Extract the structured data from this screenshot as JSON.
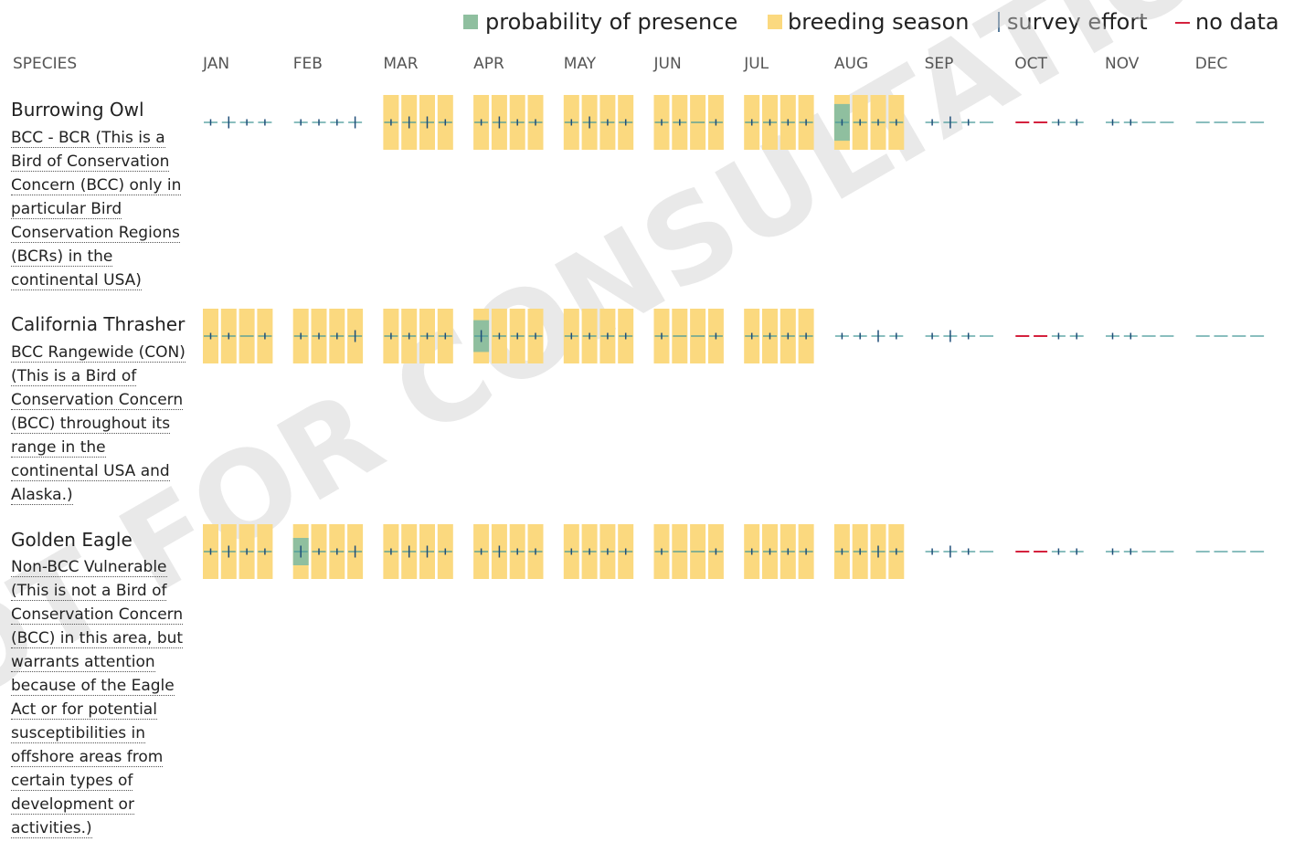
{
  "watermark": "NOT FOR CONSULTATION",
  "legend": {
    "presence": "probability of presence",
    "breeding": "breeding season",
    "effort": "survey effort",
    "no_data": "no data"
  },
  "header": {
    "species": "SPECIES",
    "months": [
      "JAN",
      "FEB",
      "MAR",
      "APR",
      "MAY",
      "JUN",
      "JUL",
      "AUG",
      "SEP",
      "OCT",
      "NOV",
      "DEC"
    ]
  },
  "species": [
    {
      "name": "Burrowing Owl",
      "description": "BCC - BCR (This is a Bird of Conservation Concern (BCC) only in particular Bird Conservation Regions (BCRs) in the continental USA)",
      "breeding": [
        false,
        false,
        false,
        false,
        false,
        false,
        false,
        false,
        true,
        true,
        true,
        true,
        true,
        true,
        true,
        true,
        true,
        true,
        true,
        true,
        true,
        true,
        true,
        true,
        true,
        true,
        true,
        true,
        true,
        true,
        true,
        true,
        false,
        false,
        false,
        false,
        false,
        false,
        false,
        false,
        false,
        false,
        false,
        false,
        false,
        false,
        false,
        false
      ],
      "presence": [
        0,
        0,
        0,
        0,
        0,
        0,
        0,
        0,
        0,
        0,
        0,
        0,
        0,
        0,
        0,
        0,
        0,
        0,
        0,
        0,
        0,
        0,
        0,
        0,
        0,
        0,
        0,
        0,
        0.67,
        0,
        0,
        0,
        0,
        0,
        0,
        0,
        0,
        0,
        0,
        0,
        0,
        0,
        0,
        0,
        0,
        0,
        0,
        0
      ],
      "effort": [
        1,
        2,
        1,
        1,
        1,
        1,
        1,
        2,
        1,
        2,
        2,
        1,
        1,
        2,
        1,
        1,
        1,
        2,
        1,
        1,
        1,
        1,
        0,
        1,
        1,
        1,
        1,
        1,
        1,
        1,
        1,
        1,
        1,
        2,
        1,
        0,
        null,
        null,
        1,
        1,
        1,
        1,
        0,
        0,
        0,
        0,
        0,
        0
      ]
    },
    {
      "name": "California Thrasher",
      "description": "BCC Rangewide (CON) (This is a Bird of Conservation Concern (BCC) throughout its range in the continental USA and Alaska.)",
      "breeding": [
        true,
        true,
        true,
        true,
        true,
        true,
        true,
        true,
        true,
        true,
        true,
        true,
        true,
        true,
        true,
        true,
        true,
        true,
        true,
        true,
        true,
        true,
        true,
        true,
        true,
        true,
        true,
        true,
        false,
        false,
        false,
        false,
        false,
        false,
        false,
        false,
        false,
        false,
        false,
        false,
        false,
        false,
        false,
        false,
        false,
        false,
        false,
        false
      ],
      "presence": [
        0,
        0,
        0,
        0,
        0,
        0,
        0,
        0,
        0,
        0,
        0,
        0,
        0.58,
        0,
        0,
        0,
        0,
        0,
        0,
        0,
        0,
        0,
        0,
        0,
        0,
        0,
        0,
        0,
        0,
        0,
        0,
        0,
        0,
        0,
        0,
        0,
        0,
        0,
        0,
        0,
        0,
        0,
        0,
        0,
        0,
        0,
        0,
        0
      ],
      "effort": [
        1,
        1,
        0,
        1,
        1,
        1,
        1,
        2,
        1,
        1,
        1,
        1,
        2,
        1,
        1,
        1,
        1,
        1,
        1,
        1,
        1,
        0,
        0,
        1,
        1,
        1,
        1,
        1,
        1,
        1,
        2,
        1,
        1,
        2,
        1,
        0,
        null,
        null,
        1,
        1,
        1,
        1,
        0,
        0,
        0,
        0,
        0,
        0
      ]
    },
    {
      "name": "Golden Eagle",
      "description": "Non-BCC Vulnerable (This is not a Bird of Conservation Concern (BCC) in this area, but warrants attention because of the Eagle Act or for potential susceptibilities in offshore areas from certain types of development or activities.)",
      "breeding": [
        true,
        true,
        true,
        true,
        true,
        true,
        true,
        true,
        true,
        true,
        true,
        true,
        true,
        true,
        true,
        true,
        true,
        true,
        true,
        true,
        true,
        true,
        true,
        true,
        true,
        true,
        true,
        true,
        true,
        true,
        true,
        true,
        false,
        false,
        false,
        false,
        false,
        false,
        false,
        false,
        false,
        false,
        false,
        false,
        false,
        false,
        false,
        false
      ],
      "presence": [
        0,
        0,
        0,
        0,
        0.5,
        0,
        0,
        0,
        0,
        0,
        0,
        0,
        0,
        0,
        0,
        0,
        0,
        0,
        0,
        0,
        0,
        0,
        0,
        0,
        0,
        0,
        0,
        0,
        0,
        0,
        0,
        0,
        0,
        0,
        0,
        0,
        0,
        0,
        0,
        0,
        0,
        0,
        0,
        0,
        0,
        0,
        0,
        0
      ],
      "effort": [
        1,
        2,
        1,
        1,
        2,
        1,
        1,
        2,
        1,
        2,
        2,
        1,
        1,
        2,
        1,
        1,
        1,
        1,
        1,
        1,
        1,
        0,
        0,
        1,
        1,
        1,
        1,
        1,
        1,
        1,
        2,
        1,
        1,
        2,
        1,
        0,
        null,
        null,
        1,
        1,
        1,
        1,
        0,
        0,
        0,
        0,
        0,
        0
      ]
    }
  ]
}
